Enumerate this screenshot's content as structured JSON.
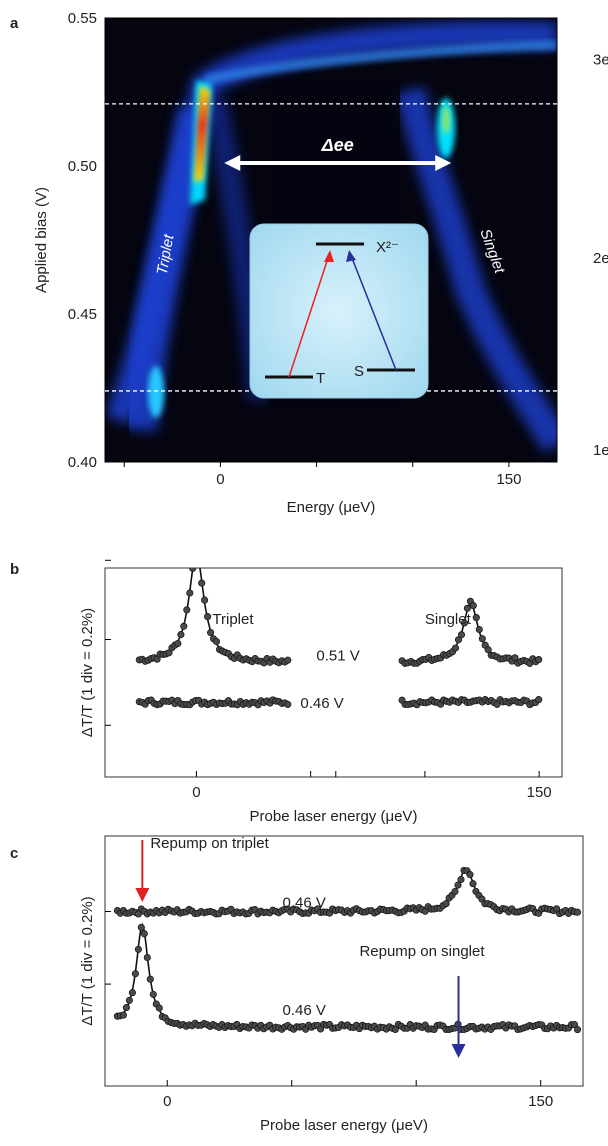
{
  "figure": {
    "panel_a_letter": "a",
    "panel_b_letter": "b",
    "panel_c_letter": "c"
  },
  "chart_data": [
    {
      "panel": "a",
      "type": "heatmap",
      "xlabel": "Energy (μeV)",
      "ylabel": "Applied bias (V)",
      "xlim": [
        -60,
        175
      ],
      "ylim": [
        0.4,
        0.55
      ],
      "xticks": [
        0,
        150
      ],
      "yticks": [
        0.4,
        0.45,
        0.5,
        0.55
      ],
      "ytick_labels": [
        "0.40",
        "0.45",
        "0.50",
        "0.55"
      ],
      "colormap": "jet-on-black",
      "dashed_lines_bias": [
        0.521,
        0.424
      ],
      "right_labels": [
        {
          "text": "3e",
          "bias": 0.536
        },
        {
          "text": "2e",
          "bias": 0.469
        },
        {
          "text": "1e",
          "bias": 0.404
        }
      ],
      "arrow": {
        "label": "Δee",
        "from_energy": 2,
        "to_energy": 120,
        "bias": 0.501
      },
      "branch_labels": [
        {
          "text": "Triplet",
          "energy": -28,
          "bias": 0.463
        },
        {
          "text": "Singlet",
          "energy": 135,
          "bias": 0.478
        }
      ],
      "inset_levels": {
        "top": "X²⁻",
        "left": "T",
        "right": "S"
      },
      "features": [
        {
          "name": "triplet-peak",
          "energy": 2,
          "bias_range": [
            0.49,
            0.53
          ],
          "intensity": 1.0
        },
        {
          "name": "singlet-peak",
          "energy": 120,
          "bias_range": [
            0.5,
            0.52
          ],
          "intensity": 0.5
        },
        {
          "name": "triplet-lower",
          "energy": -20,
          "bias_range": [
            0.42,
            0.44
          ],
          "intensity": 0.45
        }
      ]
    },
    {
      "panel": "b",
      "type": "scatter",
      "xlabel": "Probe laser energy (μeV)",
      "ylabel": "ΔT/T (1 div = 0.2%)",
      "xlim": [
        -40,
        160
      ],
      "xticks": [
        0,
        150
      ],
      "grid": false,
      "peak_labels": [
        "Triplet",
        "Singlet"
      ],
      "series": [
        {
          "name": "0.51 V",
          "voltage_label": "0.51 V",
          "segment": "triplet",
          "x_range": [
            -25,
            40
          ],
          "center": 0,
          "amplitude": 1.65,
          "width": 4,
          "baseline": 0.15,
          "has_fit": true
        },
        {
          "name": "0.51 V",
          "segment": "singlet",
          "x_range": [
            90,
            150
          ],
          "center": 120,
          "amplitude": 0.9,
          "width": 4,
          "baseline": 0.15,
          "has_fit": true
        },
        {
          "name": "0.46 V",
          "voltage_label": "0.46 V",
          "segment": "triplet",
          "x_range": [
            -25,
            40
          ],
          "center": 0,
          "amplitude": 0,
          "width": 4,
          "baseline": -0.45,
          "has_fit": true
        },
        {
          "name": "0.46 V",
          "segment": "singlet",
          "x_range": [
            90,
            150
          ],
          "center": 120,
          "amplitude": 0,
          "width": 4,
          "baseline": -0.45,
          "has_fit": true
        }
      ]
    },
    {
      "panel": "c",
      "type": "scatter",
      "xlabel": "Probe laser energy (μeV)",
      "ylabel": "ΔT/T (1 div = 0.2%)",
      "xlim": [
        -25,
        167
      ],
      "xticks": [
        0,
        150
      ],
      "grid": false,
      "annotations": [
        {
          "text": "Repump on triplet",
          "arrow_energy": -10,
          "color": "#e02020"
        },
        {
          "text": "Repump on singlet",
          "arrow_energy": 117,
          "color": "#2a2f9a"
        }
      ],
      "series": [
        {
          "name": "0.46 V (repump triplet)",
          "voltage_label": "0.46 V",
          "x_range": [
            -20,
            165
          ],
          "center": 120,
          "amplitude": 0.65,
          "width": 4,
          "baseline": 0.75,
          "has_fit": true
        },
        {
          "name": "0.46 V (repump singlet)",
          "voltage_label": "0.46 V",
          "x_range": [
            -20,
            165
          ],
          "center": -10,
          "amplitude": 1.55,
          "width": 3,
          "baseline": -1.0,
          "has_fit": true
        }
      ]
    }
  ]
}
